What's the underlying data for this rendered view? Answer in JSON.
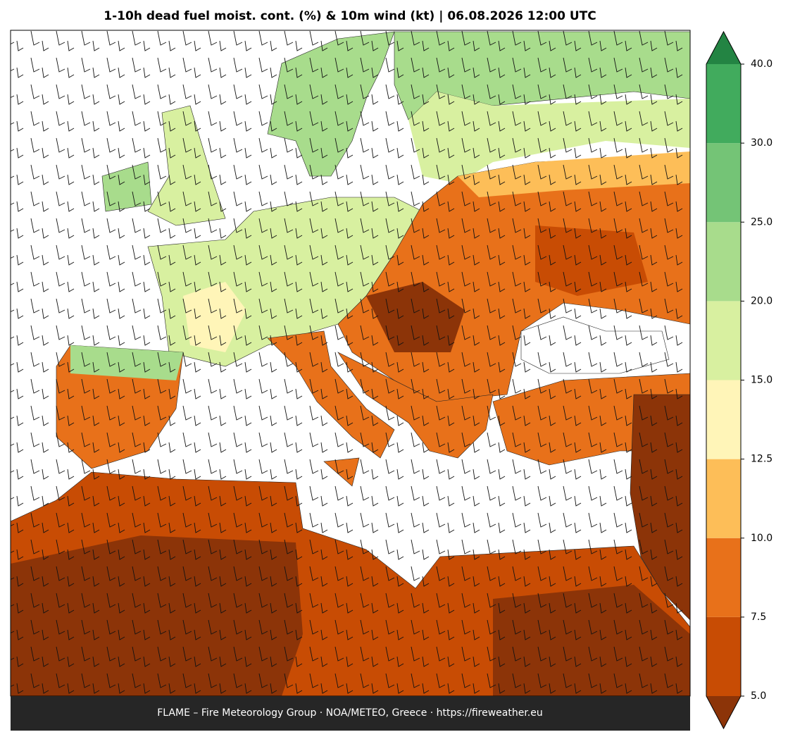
{
  "title": "1-10h dead fuel moist. cont. (%) & 10m wind (kt)  |  06.08.2026 12:00 UTC",
  "footer": "FLAME – Fire Meteorology Group · NOA/METEO, Greece · https://fireweather.eu",
  "colorbar": {
    "ticks": [
      {
        "value": 5,
        "label": "5.0"
      },
      {
        "value": 7.5,
        "label": "7.5"
      },
      {
        "value": 10,
        "label": "10.0"
      },
      {
        "value": 12.5,
        "label": "12.5"
      },
      {
        "value": 15,
        "label": "15.0"
      },
      {
        "value": 20,
        "label": "20.0"
      },
      {
        "value": 25,
        "label": "25.0"
      },
      {
        "value": 30,
        "label": "30.0"
      },
      {
        "value": 40,
        "label": "40.0"
      }
    ],
    "colors": [
      "#c84c04",
      "#e8711a",
      "#fdbe58",
      "#fff5b8",
      "#d8f0a0",
      "#a8dc8c",
      "#74c476",
      "#41ab5d"
    ],
    "under_color": "#8c3408",
    "over_color": "#238443"
  }
}
